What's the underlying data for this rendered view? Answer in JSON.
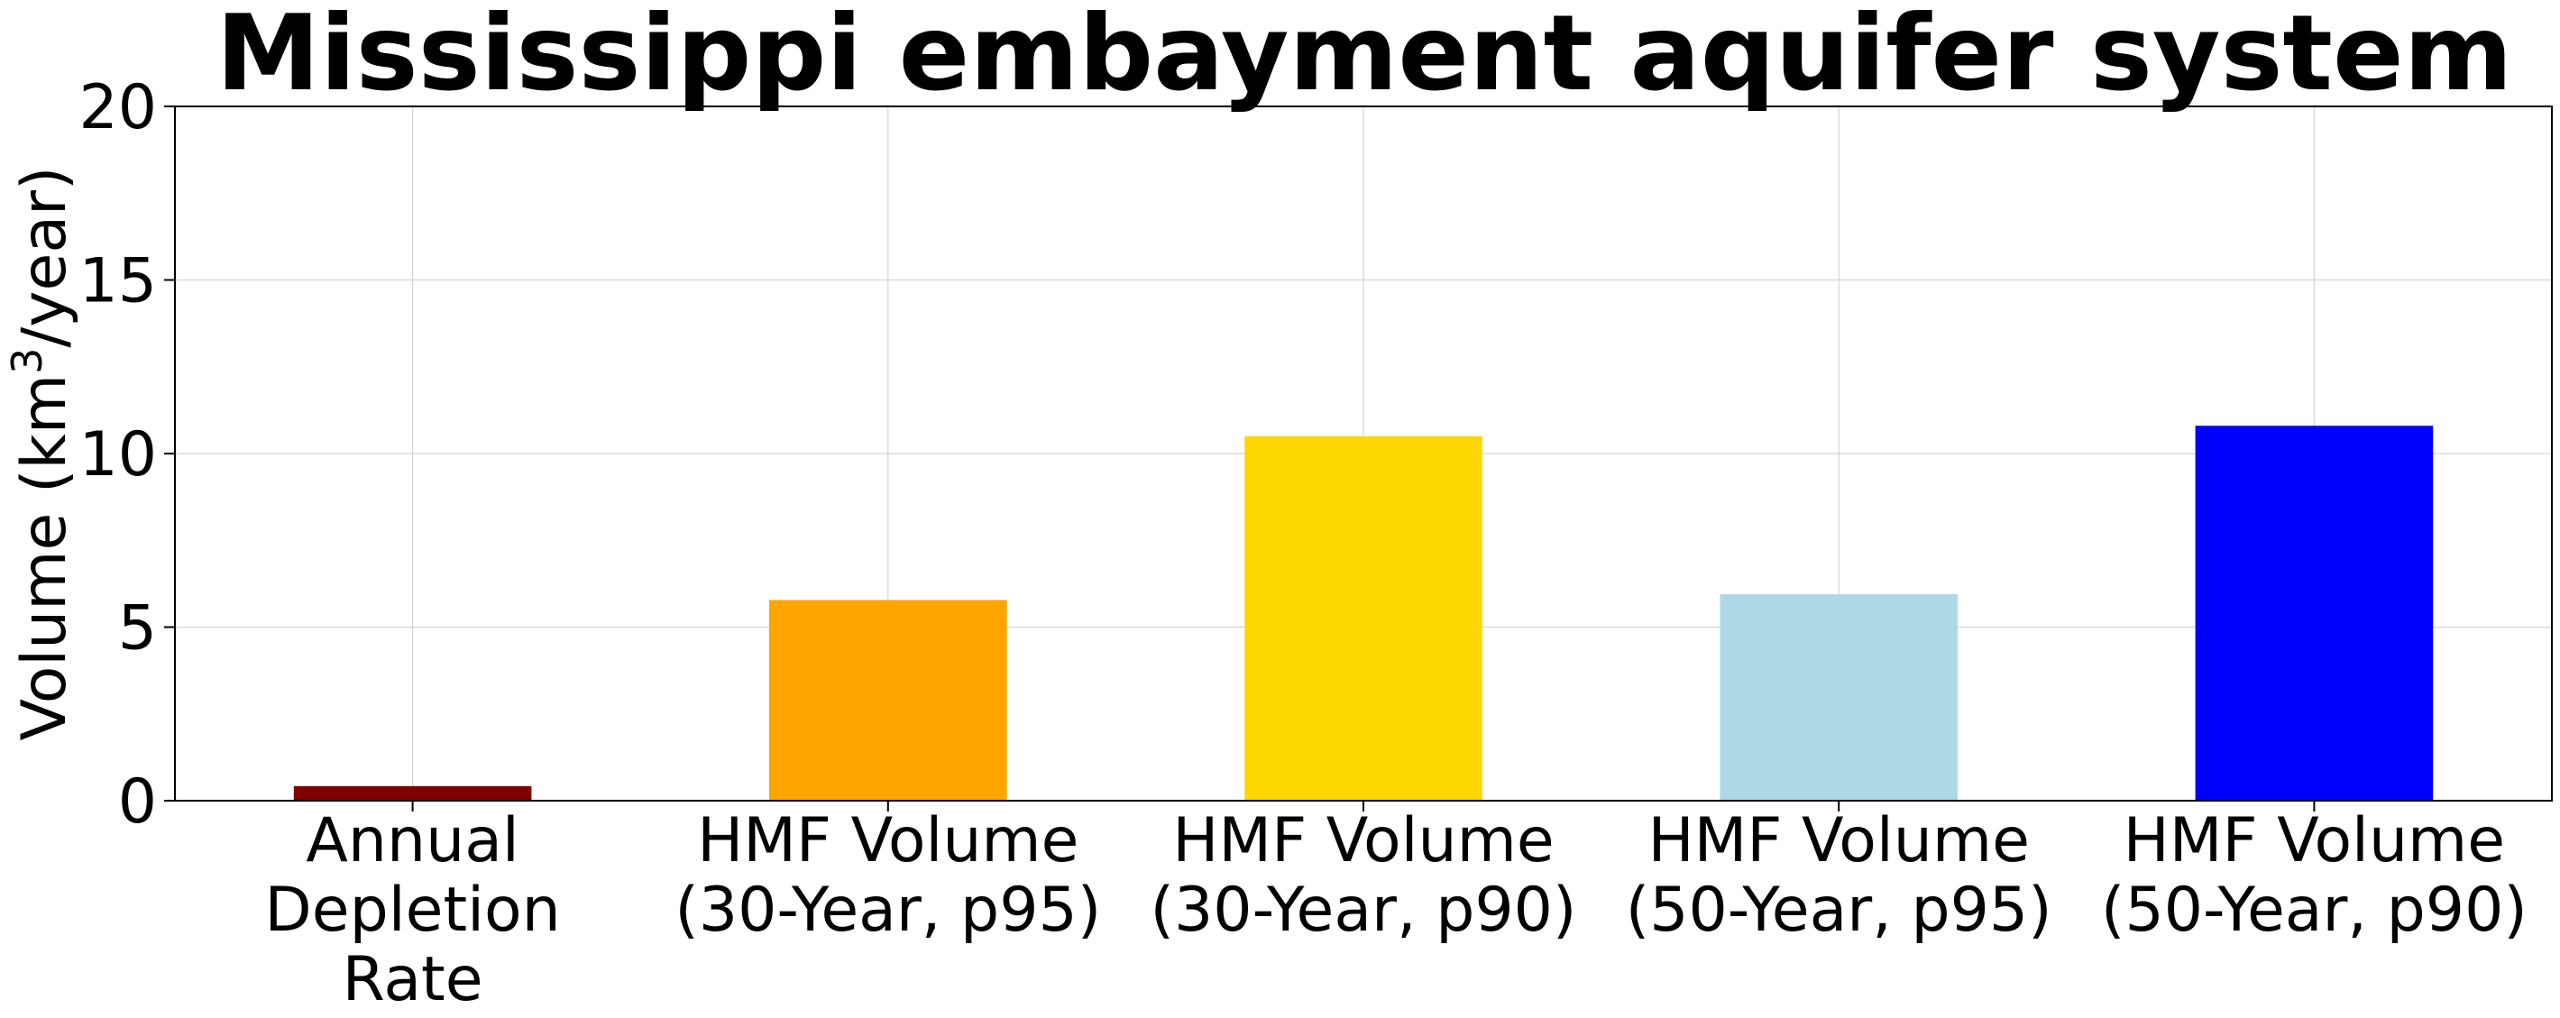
{
  "chart_data": {
    "type": "bar",
    "title": "Mississippi embayment aquifer system",
    "xlabel": "",
    "ylabel": "Volume (km³/year)",
    "ylabel_parts": {
      "prefix": "Volume (km",
      "superscript": "3",
      "suffix": "/year)"
    },
    "ylim": [
      0,
      20
    ],
    "yticks": [
      0,
      5,
      10,
      15,
      20
    ],
    "grid": true,
    "categories": [
      [
        "Annual",
        "Depletion",
        "Rate"
      ],
      [
        "HMF Volume",
        "(30-Year, p95)"
      ],
      [
        "HMF Volume",
        "(30-Year, p90)"
      ],
      [
        "HMF Volume",
        "(50-Year, p95)"
      ],
      [
        "HMF Volume",
        "(50-Year, p90)"
      ]
    ],
    "values": [
      0.42,
      5.78,
      10.5,
      5.95,
      10.8
    ],
    "colors": [
      "#800000",
      "#ffa500",
      "#ffd700",
      "#add8e6",
      "#0000ff"
    ]
  }
}
